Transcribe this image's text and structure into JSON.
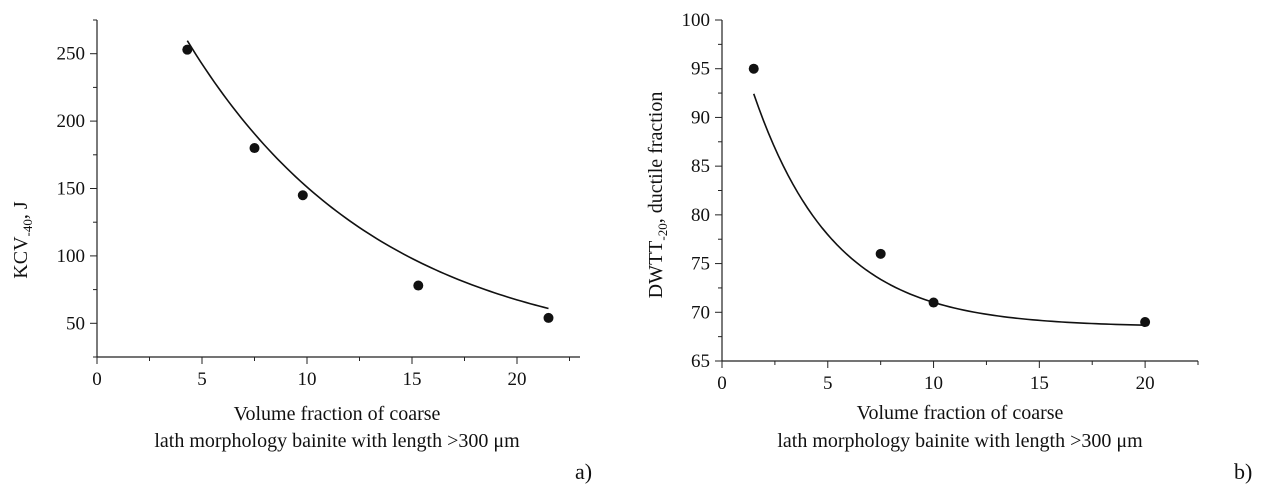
{
  "chart_data": [
    {
      "type": "scatter",
      "panel_label": "a)",
      "xlabel_line1": "Volume fraction of coarse",
      "xlabel_line2": "lath morphology bainite with length >300 μm",
      "ylabel_main": "KCV",
      "ylabel_sub": "-40",
      "ylabel_rest": ", J",
      "xlim": [
        0,
        23
      ],
      "ylim": [
        25,
        275
      ],
      "xticks": [
        0,
        5,
        10,
        15,
        20
      ],
      "yticks": [
        50,
        100,
        150,
        200,
        250
      ],
      "grid": false,
      "series": [
        {
          "x": [
            4.3,
            7.5,
            9.8,
            15.3,
            21.5
          ],
          "y": [
            253,
            180,
            145,
            78,
            54
          ]
        }
      ],
      "fit_curve": {
        "type": "exponential-decay",
        "y0": 25,
        "A": 375,
        "k": 0.109,
        "x_range": [
          4.3,
          21.5
        ]
      }
    },
    {
      "type": "scatter",
      "panel_label": "b)",
      "xlabel_line1": "Volume fraction of coarse",
      "xlabel_line2": "lath morphology bainite with length >300 μm",
      "ylabel_main": "DWTT",
      "ylabel_sub": "-20",
      "ylabel_rest": ", ductile fraction",
      "xlim": [
        0,
        22.5
      ],
      "ylim": [
        65,
        100
      ],
      "xticks": [
        0,
        5,
        10,
        15,
        20
      ],
      "yticks": [
        65,
        70,
        75,
        80,
        85,
        90,
        95,
        100
      ],
      "grid": false,
      "series": [
        {
          "x": [
            1.5,
            7.5,
            10,
            20
          ],
          "y": [
            95,
            76,
            71,
            69
          ]
        }
      ],
      "fit_curve": {
        "type": "exponential-decay",
        "y0": 68.5,
        "A": 35.6,
        "k": 0.265,
        "x_range": [
          1.5,
          20
        ]
      }
    }
  ]
}
